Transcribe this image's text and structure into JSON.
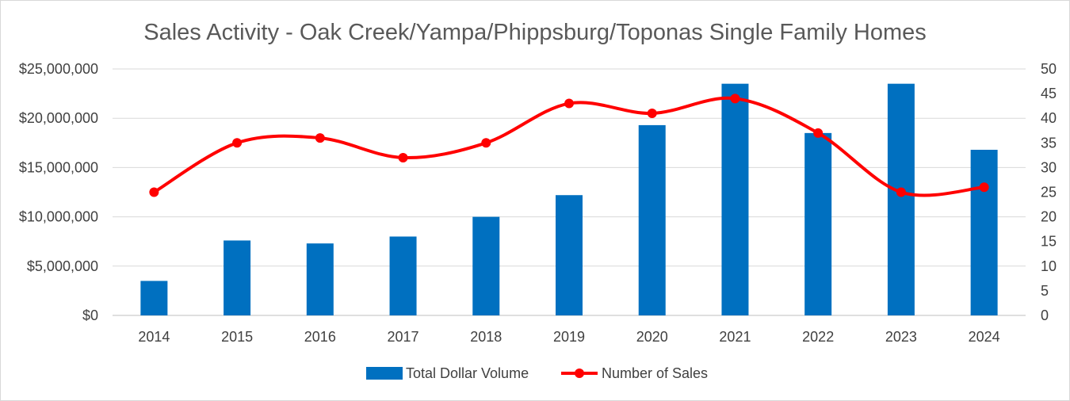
{
  "chart_data": {
    "type": "bar",
    "title": "Sales Activity - Oak Creek/Yampa/Phippsburg/Toponas Single Family Homes",
    "categories": [
      "2014",
      "2015",
      "2016",
      "2017",
      "2018",
      "2019",
      "2020",
      "2021",
      "2022",
      "2023",
      "2024"
    ],
    "series": [
      {
        "name": "Total Dollar Volume",
        "type": "bar",
        "axis": "left",
        "color": "#0070c0",
        "values": [
          3500000,
          7600000,
          7300000,
          8000000,
          10000000,
          12200000,
          19300000,
          23500000,
          18500000,
          23500000,
          16800000
        ]
      },
      {
        "name": "Number of Sales",
        "type": "line",
        "axis": "right",
        "smooth": true,
        "color": "#ff0000",
        "values": [
          25,
          35,
          36,
          32,
          35,
          43,
          41,
          44,
          37,
          25,
          26
        ]
      }
    ],
    "y_left": {
      "min": 0,
      "max": 25000000,
      "step": 5000000,
      "tick_labels": [
        "$0",
        "$5,000,000",
        "$10,000,000",
        "$15,000,000",
        "$20,000,000",
        "$25,000,000"
      ]
    },
    "y_right": {
      "min": 0,
      "max": 50,
      "step": 5,
      "tick_labels": [
        "0",
        "5",
        "10",
        "15",
        "20",
        "25",
        "30",
        "35",
        "40",
        "45",
        "50"
      ]
    },
    "grid": true,
    "legend_position": "bottom",
    "legend": [
      "Total Dollar Volume",
      "Number of Sales"
    ]
  }
}
